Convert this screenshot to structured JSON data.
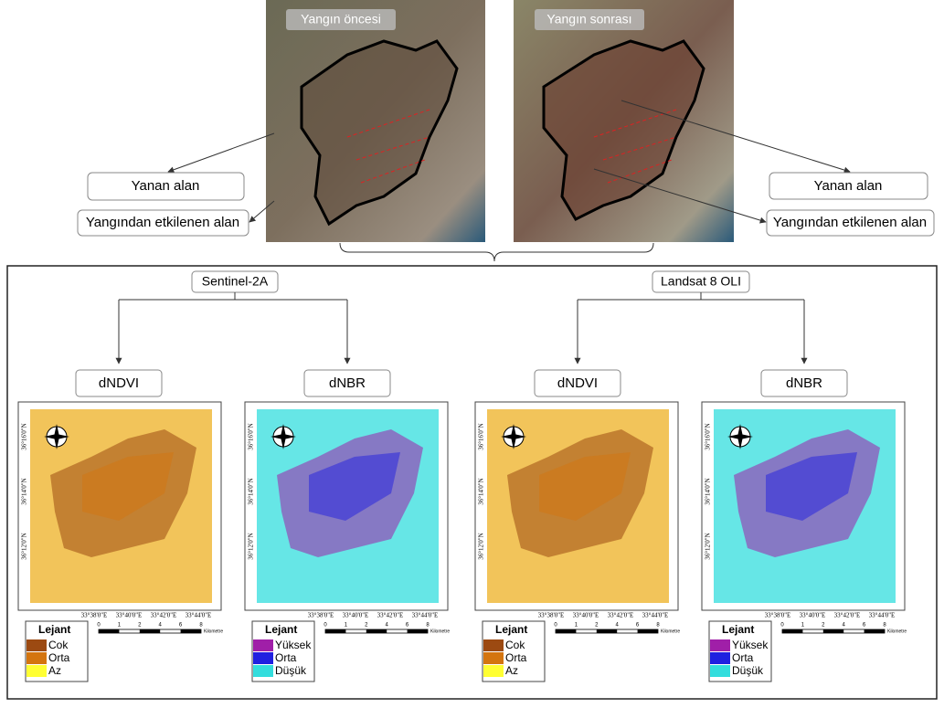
{
  "top": {
    "before_label": "Yangın öncesi",
    "after_label": "Yangın sonrası",
    "left_burned": "Yanan alan",
    "left_affected": "Yangından etkilenen alan",
    "right_burned": "Yanan alan",
    "right_affected": "Yangından etkilenen alan"
  },
  "sources": [
    {
      "name": "Sentinel-2A",
      "maps": [
        {
          "title": "dNDVI",
          "legend_title": "Lejant",
          "legend": [
            {
              "label": "Cok",
              "color": "#9c4a12"
            },
            {
              "label": "Orta",
              "color": "#d4750f"
            },
            {
              "label": "Az",
              "color": "#ffff33"
            }
          ]
        },
        {
          "title": "dNBR",
          "legend_title": "Lejant",
          "legend": [
            {
              "label": "Yüksek",
              "color": "#a01fa8"
            },
            {
              "label": "Orta",
              "color": "#2020e0"
            },
            {
              "label": "Düşük",
              "color": "#33dddd"
            }
          ]
        }
      ]
    },
    {
      "name": "Landsat 8 OLI",
      "maps": [
        {
          "title": "dNDVI",
          "legend_title": "Lejant",
          "legend": [
            {
              "label": "Cok",
              "color": "#9c4a12"
            },
            {
              "label": "Orta",
              "color": "#d4750f"
            },
            {
              "label": "Az",
              "color": "#ffff33"
            }
          ]
        },
        {
          "title": "dNBR",
          "legend_title": "Lejant",
          "legend": [
            {
              "label": "Yüksek",
              "color": "#a01fa8"
            },
            {
              "label": "Orta",
              "color": "#2020e0"
            },
            {
              "label": "Düşük",
              "color": "#33dddd"
            }
          ]
        }
      ]
    }
  ],
  "map_axes": {
    "lon": [
      "33°38'0\"E",
      "33°40'0\"E",
      "33°42'0\"E",
      "33°44'0\"E"
    ],
    "lat": [
      "36°16'0\"N",
      "36°14'0\"N",
      "36°12'0\"N"
    ]
  },
  "scale": {
    "ticks": [
      0,
      1,
      2,
      4,
      6,
      8
    ],
    "unit": "Kilometre"
  }
}
